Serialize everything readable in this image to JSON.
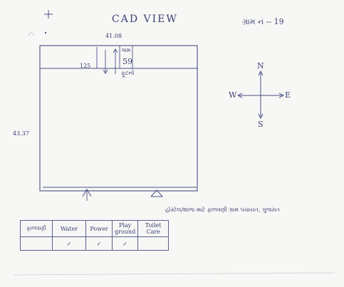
{
  "header": {
    "title": "CAD VIEW",
    "number_label": "ગ્રામ નં -- 19"
  },
  "plot": {
    "top_dimension": "41.08",
    "left_dimension": "43.37",
    "corner_value": "125",
    "road_label": "ગામ",
    "road_value": "59",
    "road_sublabel": "ફૂટનો"
  },
  "compass": {
    "north": "N",
    "south": "S",
    "east": "E",
    "west": "W"
  },
  "footer_note": "હોસ્ટેલ/શાળા માટે ફાળવણી ગ્રામ પંચાયત, ગુજરાત",
  "facilities_table": {
    "headers": [
      "ફાળવણી",
      "Water",
      "Power",
      "Play ground",
      "Toilet Care"
    ],
    "row": [
      "",
      "✓",
      "✓",
      "✓",
      ""
    ]
  }
}
